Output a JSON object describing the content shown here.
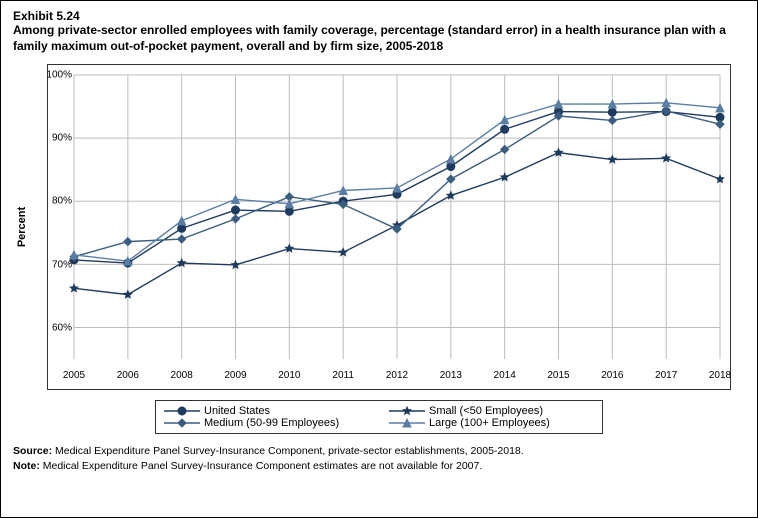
{
  "header": {
    "exhibit_number": "Exhibit 5.24",
    "title": "Among private-sector enrolled employees with family coverage, percentage (standard error) in a health insurance plan with a family maximum out-of-pocket payment, overall and by firm size, 2005-2018"
  },
  "chart": {
    "type": "line",
    "y_axis_label": "Percent",
    "ylim": [
      55,
      100
    ],
    "ytick_step": 10,
    "ytick_suffix": "%",
    "x_categories": [
      "2005",
      "2006",
      "2008",
      "2009",
      "2010",
      "2011",
      "2012",
      "2013",
      "2014",
      "2015",
      "2016",
      "2017",
      "2018"
    ],
    "grid_color": "#bdbdbd",
    "background_color": "#ffffff",
    "axis_color": "#333333",
    "series": [
      {
        "name": "United States",
        "marker": "circle",
        "color": "#1f3a5f",
        "values": [
          70.7,
          70.2,
          75.7,
          78.6,
          78.4,
          80.0,
          81.1,
          85.5,
          91.4,
          94.2,
          94.1,
          94.2,
          93.3
        ]
      },
      {
        "name": "Small (<50 Employees)",
        "marker": "star",
        "color": "#1f3a5f",
        "values": [
          66.2,
          65.2,
          70.2,
          69.9,
          72.5,
          71.9,
          76.2,
          80.9,
          83.8,
          87.7,
          86.6,
          86.8,
          83.5
        ]
      },
      {
        "name": "Medium (50-99 Employees)",
        "marker": "diamond",
        "color": "#3b5d81",
        "values": [
          71.2,
          73.6,
          74.0,
          77.2,
          80.7,
          79.5,
          75.6,
          83.5,
          88.2,
          93.5,
          92.8,
          94.3,
          92.2
        ]
      },
      {
        "name": "Large (100+ Employees)",
        "marker": "triangle",
        "color": "#5a7ea3",
        "values": [
          71.5,
          70.5,
          76.9,
          80.3,
          79.6,
          81.7,
          82.1,
          86.7,
          92.9,
          95.4,
          95.4,
          95.6,
          94.8
        ]
      }
    ]
  },
  "legend": {
    "items": [
      "United States",
      "Small (<50 Employees)",
      "Medium (50-99 Employees)",
      "Large (100+ Employees)"
    ]
  },
  "footer": {
    "source_label": "Source:",
    "source_text": " Medical Expenditure Panel Survey-Insurance Component, private-sector establishments, 2005-2018.",
    "note_label": "Note:",
    "note_text": " Medical Expenditure Panel Survey-Insurance Component estimates are not available for 2007."
  }
}
